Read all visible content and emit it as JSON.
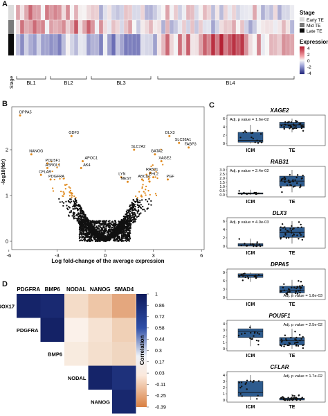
{
  "panels": {
    "a": "A",
    "b": "B",
    "c": "C",
    "d": "D"
  },
  "panel_a": {
    "row_label": "Stage",
    "cluster_labels": [
      "BL1",
      "BL2",
      "BL3",
      "BL4"
    ],
    "stage_legend": {
      "title": "Stage",
      "items": [
        {
          "label": "Early TE",
          "color": "#dcdcdc"
        },
        {
          "label": "Mid TE",
          "color": "#7a7a7a"
        },
        {
          "label": "Late TE",
          "color": "#0b0b0b"
        }
      ]
    },
    "expression_legend": {
      "title": "Expression",
      "ticks": [
        "4",
        "2",
        "0",
        "-2",
        "-4"
      ]
    },
    "colors": {
      "high": "#b2182b",
      "mid": "#f7f7f7",
      "low": "#3b3f9e"
    }
  },
  "panel_b": {
    "xlabel": "Log fold-change of the average expression",
    "ylabel": "-log10(fdr)",
    "x_ticks": [
      "-6",
      "-3",
      "0",
      "3",
      "6"
    ],
    "y_ticks": [
      "0",
      "1",
      "2"
    ],
    "labels": [
      "DPPA5",
      "GDF3",
      "NANOG",
      "POU5F1",
      "ASRGL1",
      "CFLAR",
      "PDGFRA",
      "APOC1",
      "AK4",
      "SLC7A2",
      "DLX3",
      "SLC38A1",
      "FABP3",
      "GATA2",
      "XAGE2",
      "RAB31",
      "FHL2",
      "LYN",
      "ABCD2",
      "MEST",
      "PGF"
    ],
    "colors": {
      "sig": "#e08a1e",
      "nonsig": "#111111"
    }
  },
  "panel_c": {
    "plots": [
      {
        "gene": "XAGE2",
        "p": "Adj. p value = 1.6e-02",
        "y_ticks": [
          "0",
          "2",
          "4",
          "6"
        ]
      },
      {
        "gene": "RAB31",
        "p": "Adj. p value = 2.4e-02",
        "y_ticks": [
          "0.0",
          "0.5",
          "1.0",
          "1.5",
          "2.0",
          "2.5",
          "3.0"
        ]
      },
      {
        "gene": "DLX3",
        "p": "Adj. p value = 4.0e-03",
        "y_ticks": [
          "0",
          "2",
          "4",
          "6"
        ]
      },
      {
        "gene": "DPPA5",
        "p": "Adj. p value = 1.8e-03",
        "y_ticks": [
          "0",
          "3",
          "6",
          "9"
        ]
      },
      {
        "gene": "POU5F1",
        "p": "Adj. p value = 2.5e-02",
        "y_ticks": [
          "0",
          "1",
          "2",
          "3",
          "4"
        ]
      },
      {
        "gene": "CFLAR",
        "p": "Adj. p value = 1.7e-02",
        "y_ticks": [
          "0",
          "1",
          "2",
          "3",
          "4"
        ]
      }
    ],
    "groups": [
      "ICM",
      "TE"
    ],
    "box_color": "#2d5b8e"
  },
  "panel_d": {
    "col_labels": [
      "PDGFRA",
      "BMP6",
      "NODAL",
      "NANOG",
      "SMAD4"
    ],
    "row_labels": [
      "SOX17",
      "PDGFRA",
      "BMP6",
      "NODAL",
      "NANOG"
    ],
    "legend_title": "Correlation",
    "legend_ticks": [
      "1",
      "0.86",
      "0.72",
      "0.58",
      "0.44",
      "0.3",
      "0.17",
      "0.03",
      "-0.11",
      "-0.25",
      "-0.39"
    ],
    "matrix": [
      [
        0.95,
        0.92,
        0.05,
        0.15,
        0.28
      ],
      [
        null,
        0.96,
        0.02,
        0.08,
        0.16
      ],
      [
        null,
        null,
        0.05,
        0.1,
        0.12
      ],
      [
        null,
        null,
        null,
        0.95,
        0.88
      ],
      [
        null,
        null,
        null,
        null,
        0.93
      ]
    ]
  }
}
